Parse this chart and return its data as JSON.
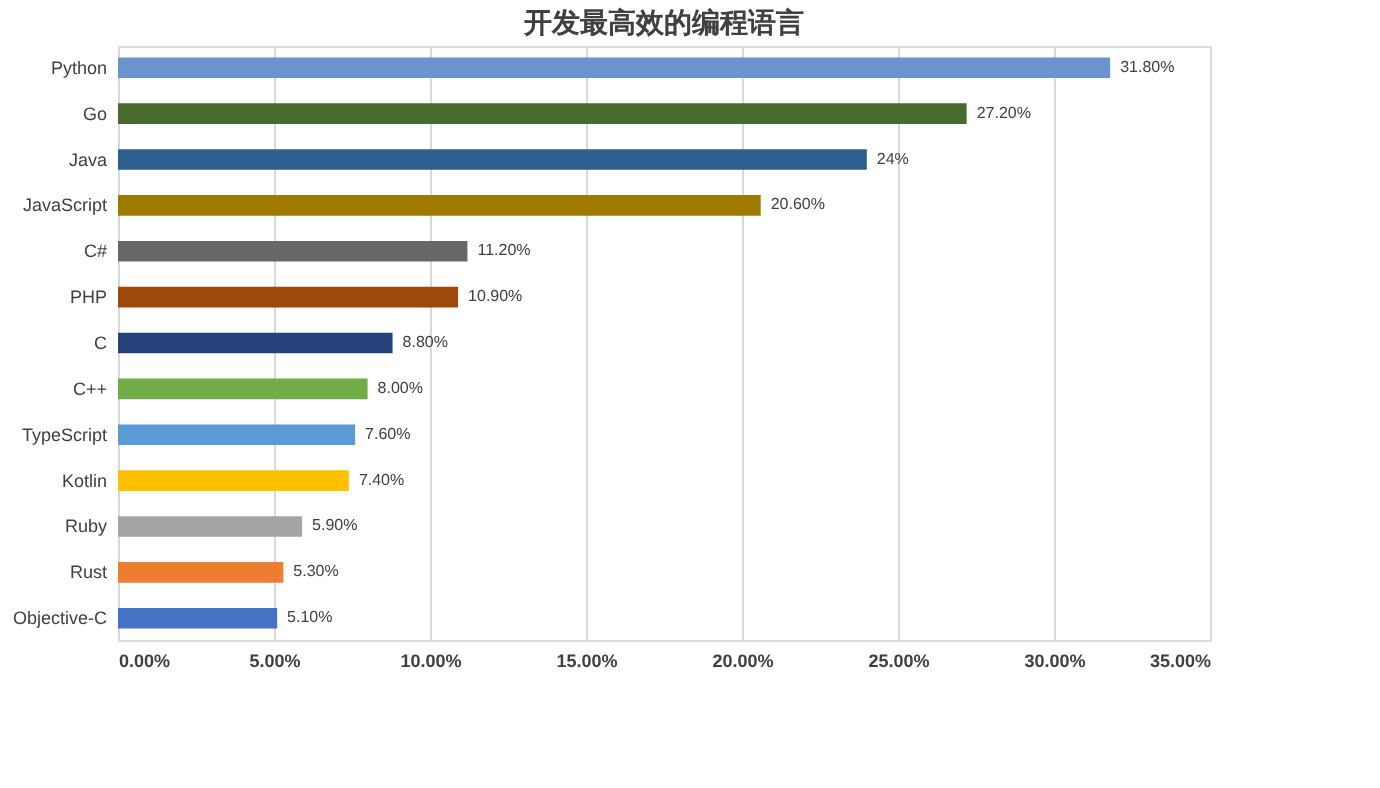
{
  "chart_data": {
    "type": "bar",
    "orientation": "horizontal",
    "title": "开发最高效的编程语言",
    "categories": [
      "Python",
      "Go",
      "Java",
      "JavaScript",
      "C#",
      "PHP",
      "C",
      "C++",
      "TypeScript",
      "Kotlin",
      "Ruby",
      "Rust",
      "Objective-C"
    ],
    "values": [
      31.8,
      27.2,
      24,
      20.6,
      11.2,
      10.9,
      8.8,
      8.0,
      7.6,
      7.4,
      5.9,
      5.3,
      5.1
    ],
    "colors": [
      "#6a93cf",
      "#476b2f",
      "#2e5e8e",
      "#9e7a00",
      "#676767",
      "#9e480e",
      "#26427a",
      "#70ad47",
      "#5b9bd5",
      "#ffc000",
      "#a5a5a5",
      "#ed7d31",
      "#4472c4"
    ],
    "value_labels": [
      "31.80%",
      "27.20%",
      "24%",
      "20.60%",
      "11.20%",
      "10.90%",
      "8.80%",
      "8.00%",
      "7.60%",
      "7.40%",
      "5.90%",
      "5.30%",
      "5.10%"
    ],
    "xlim": [
      0,
      35
    ],
    "xticks": [
      {
        "value": 0,
        "label": "0.00%"
      },
      {
        "value": 5,
        "label": "5.00%"
      },
      {
        "value": 10,
        "label": "10.00%"
      },
      {
        "value": 15,
        "label": "15.00%"
      },
      {
        "value": 20,
        "label": "20.00%"
      },
      {
        "value": 25,
        "label": "25.00%"
      },
      {
        "value": 30,
        "label": "30.00%"
      },
      {
        "value": 35,
        "label": "35.00%"
      }
    ],
    "grid": "x"
  }
}
